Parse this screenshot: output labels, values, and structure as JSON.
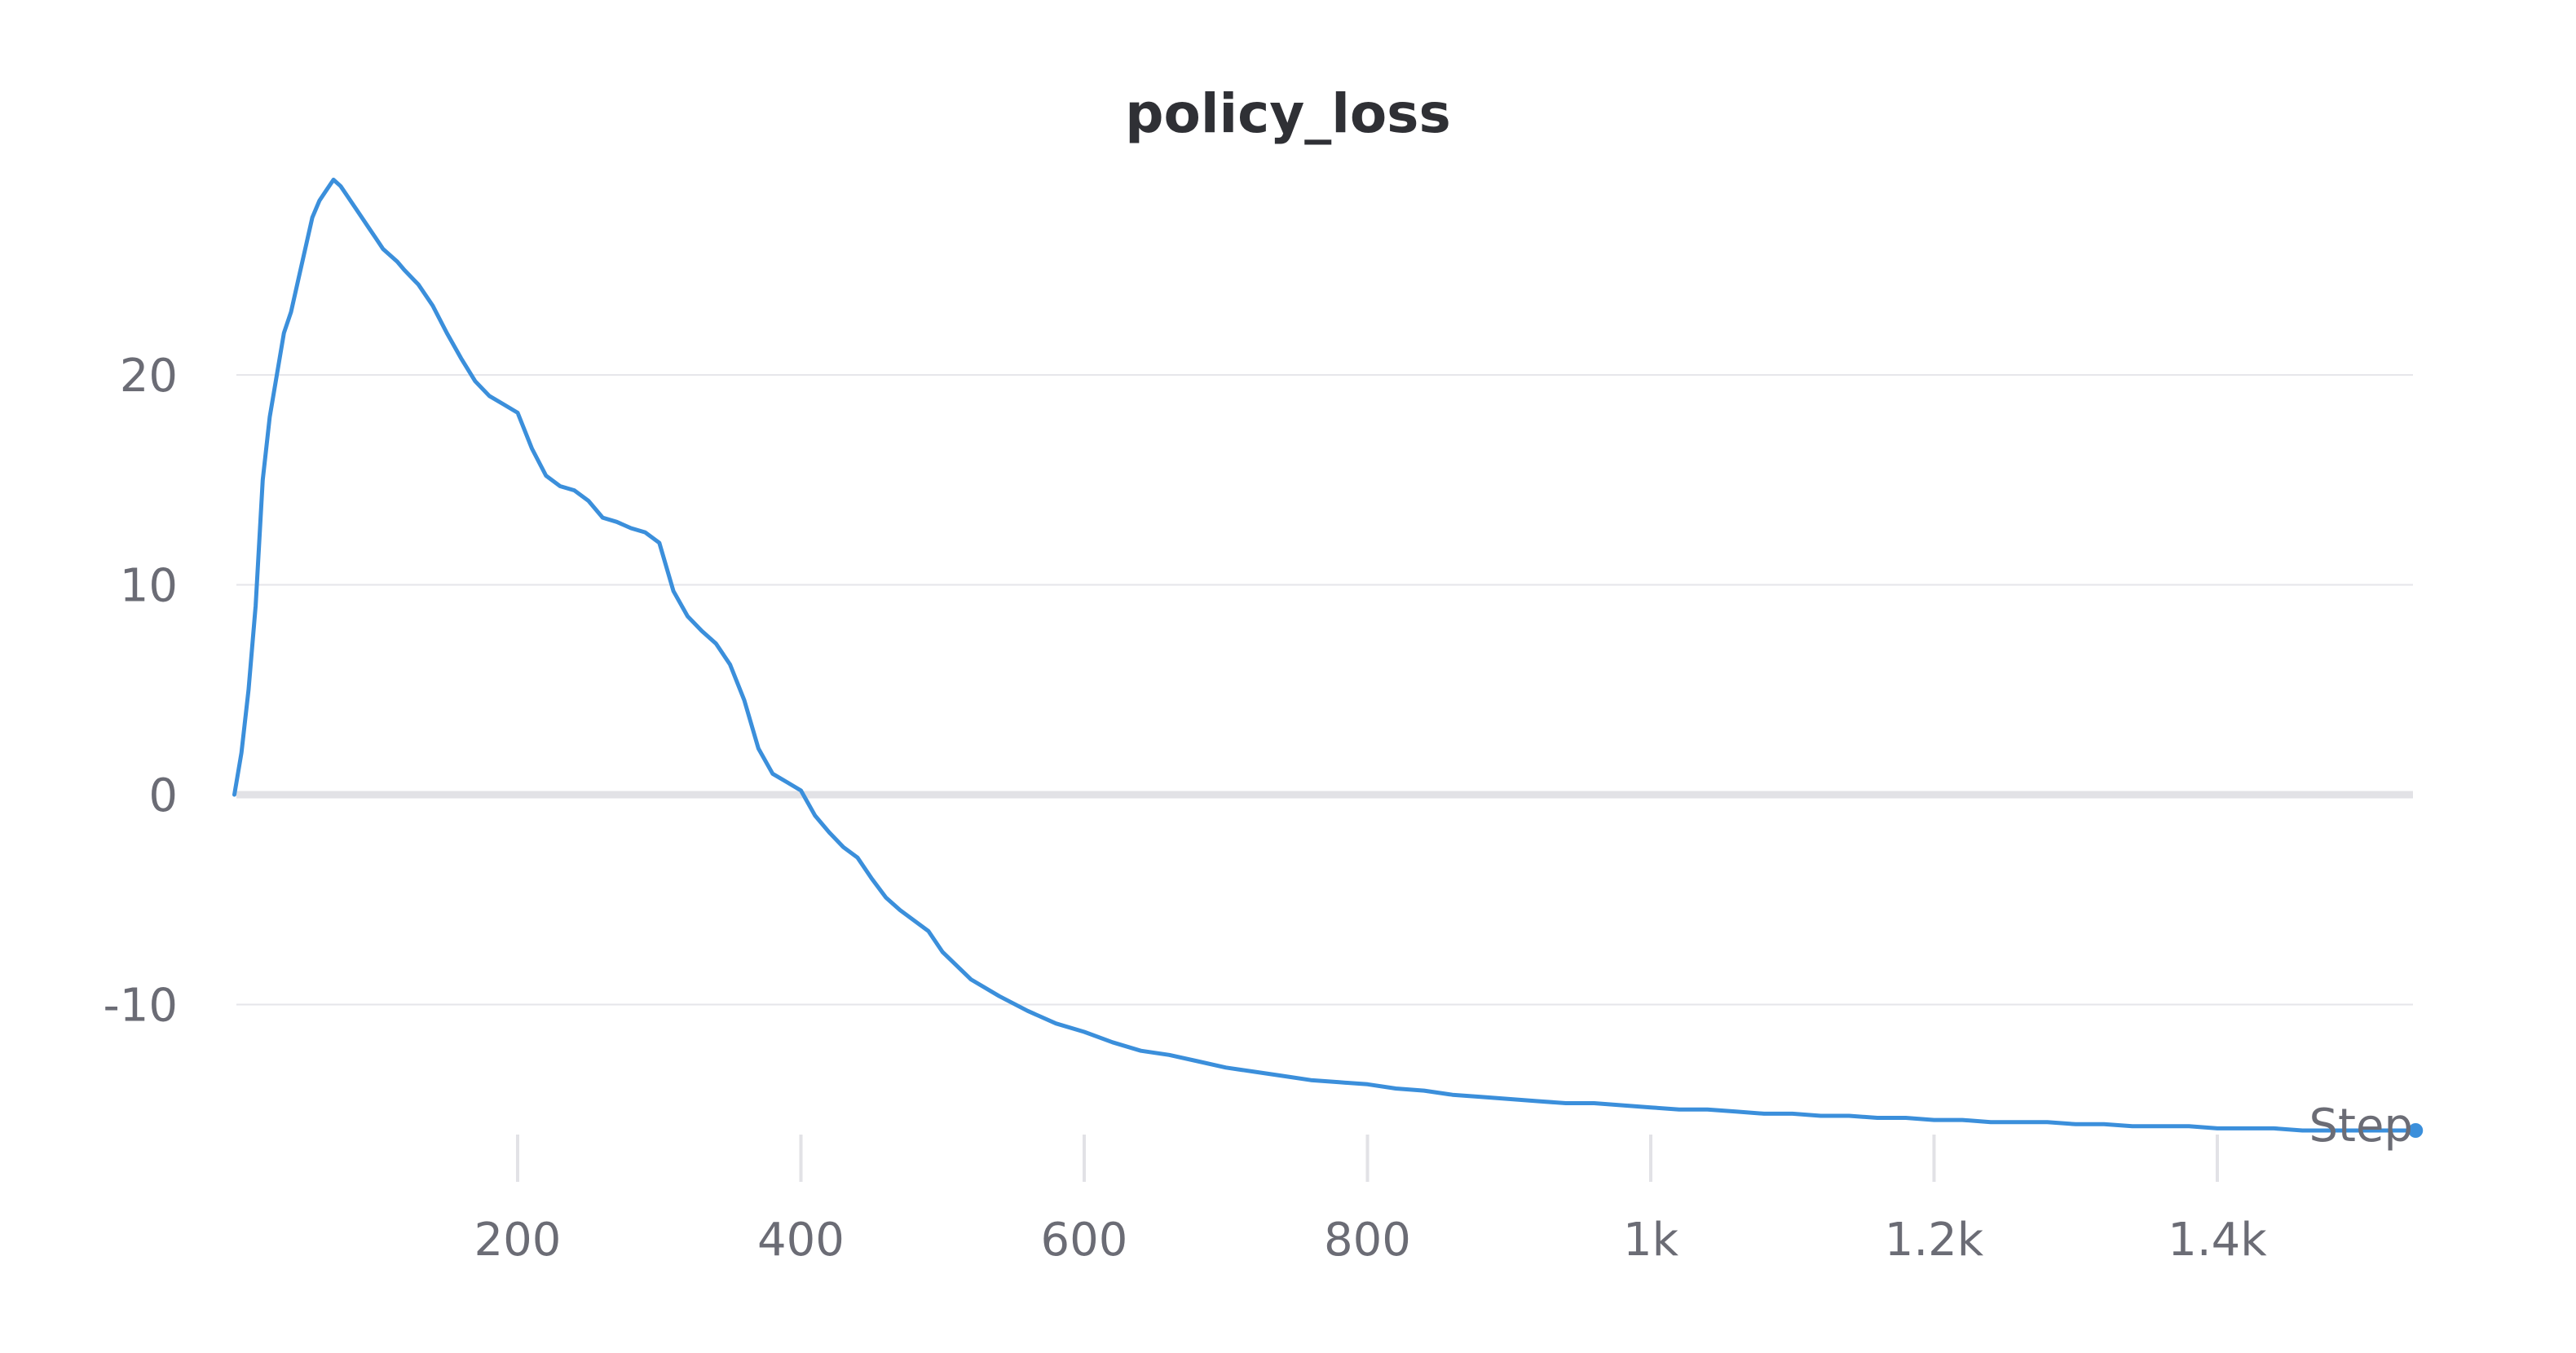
{
  "chart_data": {
    "type": "line",
    "title": "policy_loss",
    "xlabel": "Step",
    "ylabel": "",
    "xlim": [
      0,
      1540
    ],
    "ylim": [
      -17,
      31
    ],
    "y_ticks": [
      -10,
      0,
      10,
      20
    ],
    "y_tick_labels": [
      "-10",
      "0",
      "10",
      "20"
    ],
    "x_ticks": [
      200,
      400,
      600,
      800,
      1000,
      1200,
      1400
    ],
    "x_tick_labels": [
      "200",
      "400",
      "600",
      "800",
      "1k",
      "1.2k",
      "1.4k"
    ],
    "grid": "horizontal",
    "legend": "none",
    "series": [
      {
        "color": "#3b8fdb",
        "x": [
          0,
          5,
          10,
          15,
          20,
          25,
          30,
          35,
          40,
          45,
          50,
          55,
          60,
          65,
          70,
          75,
          80,
          85,
          90,
          95,
          100,
          105,
          110,
          115,
          120,
          130,
          140,
          150,
          160,
          170,
          180,
          190,
          200,
          210,
          220,
          230,
          240,
          250,
          260,
          270,
          280,
          290,
          300,
          310,
          320,
          330,
          340,
          350,
          360,
          370,
          380,
          390,
          400,
          410,
          420,
          430,
          440,
          450,
          460,
          470,
          480,
          490,
          500,
          520,
          540,
          560,
          580,
          600,
          620,
          640,
          660,
          680,
          700,
          720,
          740,
          760,
          780,
          800,
          820,
          840,
          860,
          880,
          900,
          920,
          940,
          960,
          980,
          1000,
          1020,
          1040,
          1060,
          1080,
          1100,
          1120,
          1140,
          1160,
          1180,
          1200,
          1220,
          1240,
          1260,
          1280,
          1300,
          1320,
          1340,
          1360,
          1380,
          1400,
          1420,
          1440,
          1460,
          1480,
          1500,
          1520,
          1540
        ],
        "y": [
          0,
          2,
          5,
          9,
          15,
          18,
          20,
          22,
          23,
          24.5,
          26,
          27.5,
          28.3,
          28.8,
          29.3,
          29,
          28.5,
          28,
          27.5,
          27,
          26.5,
          26,
          25.7,
          25.4,
          25,
          24.3,
          23.3,
          22,
          20.8,
          19.7,
          19,
          18.6,
          18.2,
          16.5,
          15.2,
          14.7,
          14.5,
          14,
          13.2,
          13,
          12.7,
          12.5,
          12,
          9.7,
          8.5,
          7.8,
          7.2,
          6.2,
          4.5,
          2.2,
          1,
          0.6,
          0.2,
          -1,
          -1.8,
          -2.5,
          -3,
          -4,
          -4.9,
          -5.5,
          -6,
          -6.5,
          -7.5,
          -8.8,
          -9.6,
          -10.3,
          -10.9,
          -11.3,
          -11.8,
          -12.2,
          -12.4,
          -12.7,
          -13,
          -13.2,
          -13.4,
          -13.6,
          -13.7,
          -13.8,
          -14,
          -14.1,
          -14.3,
          -14.4,
          -14.5,
          -14.6,
          -14.7,
          -14.7,
          -14.8,
          -14.9,
          -15,
          -15,
          -15.1,
          -15.2,
          -15.2,
          -15.3,
          -15.3,
          -15.4,
          -15.4,
          -15.5,
          -15.5,
          -15.6,
          -15.6,
          -15.6,
          -15.7,
          -15.7,
          -15.8,
          -15.8,
          -15.8,
          -15.9,
          -15.9,
          -15.9,
          -16,
          -16,
          -16,
          -16,
          -16
        ]
      }
    ]
  }
}
